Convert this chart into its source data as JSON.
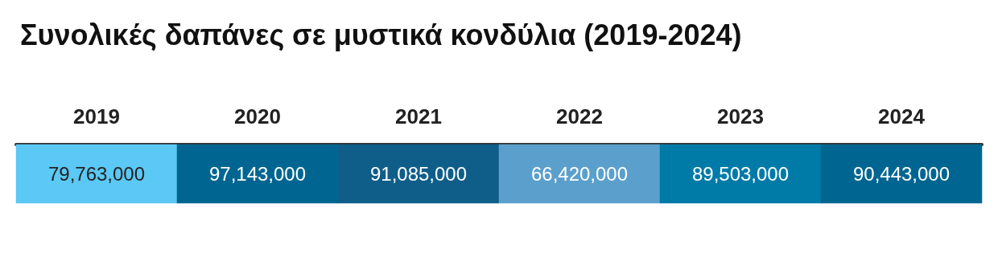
{
  "chart_data": {
    "type": "heatmap",
    "title": "Συνολικές δαπάνες σε μυστικά κονδύλια (2019-2024)",
    "categories": [
      "2019",
      "2020",
      "2021",
      "2022",
      "2023",
      "2024"
    ],
    "y_categories": [
      null
    ],
    "cells": [
      [
        79763000,
        97143000,
        91085000,
        66420000,
        89503000,
        90443000
      ]
    ],
    "cell_labels": [
      [
        "79,763,000",
        "97,143,000",
        "91,085,000",
        "66,420,000",
        "89,503,000",
        "90,443,000"
      ]
    ],
    "colors": [
      "#5bc8f5",
      "#006691",
      "#0f5e8a",
      "#5ba0cc",
      "#007ba8",
      "#006691"
    ],
    "data_labels": true
  }
}
